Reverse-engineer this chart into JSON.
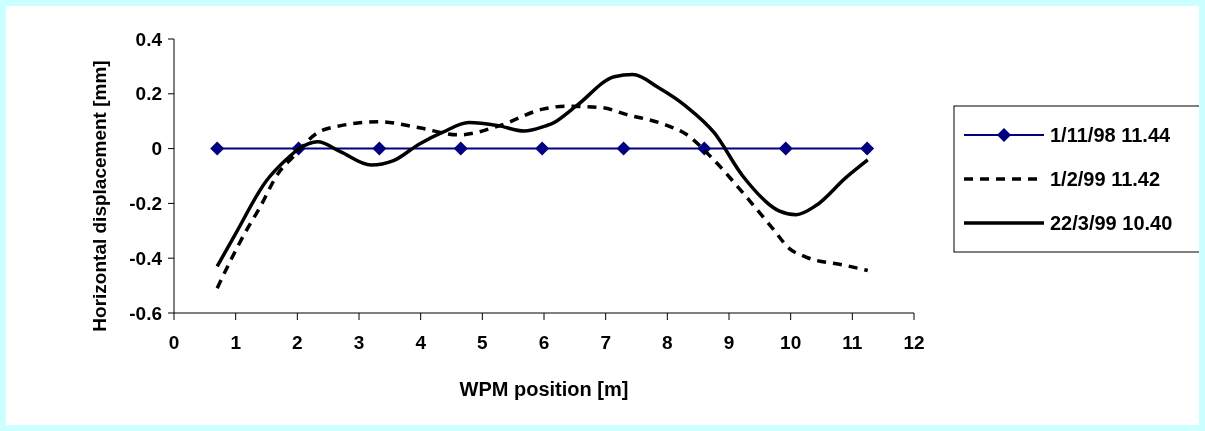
{
  "chart_data": {
    "type": "line",
    "xlabel": "WPM position [m]",
    "ylabel": "Horizontal displacement [mm]",
    "xlim": [
      0,
      12
    ],
    "xticks": [
      0,
      1,
      2,
      3,
      4,
      5,
      6,
      7,
      8,
      9,
      10,
      11,
      12
    ],
    "ylim": [
      -0.6,
      0.4
    ],
    "yticks": [
      -0.6,
      -0.4,
      -0.2,
      0,
      0.2,
      0.4
    ],
    "grid": false,
    "legend": "right",
    "series": [
      {
        "name": "1/11/98 11.44",
        "color": "#000080",
        "marker": "diamond",
        "line_style": "solid",
        "x": [
          0.7,
          2.02,
          3.33,
          4.65,
          5.97,
          7.29,
          8.6,
          9.92,
          11.24
        ],
        "values": [
          0,
          0,
          0,
          0,
          0,
          0,
          0,
          0,
          0
        ]
      },
      {
        "name": "1/2/99 11.42",
        "color": "#000000",
        "marker": "none",
        "line_style": "dashed",
        "x": [
          0.7,
          0.87,
          1.17,
          1.38,
          1.7,
          1.92,
          2.33,
          2.69,
          3.33,
          3.98,
          4.62,
          5.27,
          5.98,
          6.36,
          6.95,
          7.33,
          7.98,
          8.3,
          8.74,
          9.22,
          9.71,
          9.98,
          10.25,
          10.9,
          11.25
        ],
        "values": [
          -0.51,
          -0.43,
          -0.3,
          -0.22,
          -0.087,
          -0.033,
          0.058,
          0.083,
          0.098,
          0.076,
          0.05,
          0.083,
          0.144,
          0.155,
          0.149,
          0.125,
          0.086,
          0.053,
          -0.038,
          -0.16,
          -0.292,
          -0.365,
          -0.396,
          -0.427,
          -0.445
        ]
      },
      {
        "name": "22/3/99 10.40",
        "color": "#000000",
        "marker": "none",
        "line_style": "solid",
        "x": [
          0.7,
          1.0,
          1.49,
          1.82,
          2.03,
          2.33,
          2.69,
          3.2,
          3.55,
          3.98,
          4.36,
          4.78,
          5.27,
          5.68,
          6.03,
          6.11,
          6.52,
          7.14,
          7.44,
          7.86,
          8.3,
          8.76,
          9.22,
          9.81,
          10.09,
          10.41,
          10.9,
          11.25
        ],
        "values": [
          -0.43,
          -0.31,
          -0.12,
          -0.04,
          0,
          0.025,
          -0.01,
          -0.06,
          -0.045,
          0.017,
          0.06,
          0.095,
          0.083,
          0.064,
          0.083,
          0.089,
          0.155,
          0.262,
          0.27,
          0.222,
          0.155,
          0.058,
          -0.099,
          -0.227,
          -0.241,
          -0.208,
          -0.105,
          -0.041
        ]
      }
    ]
  }
}
